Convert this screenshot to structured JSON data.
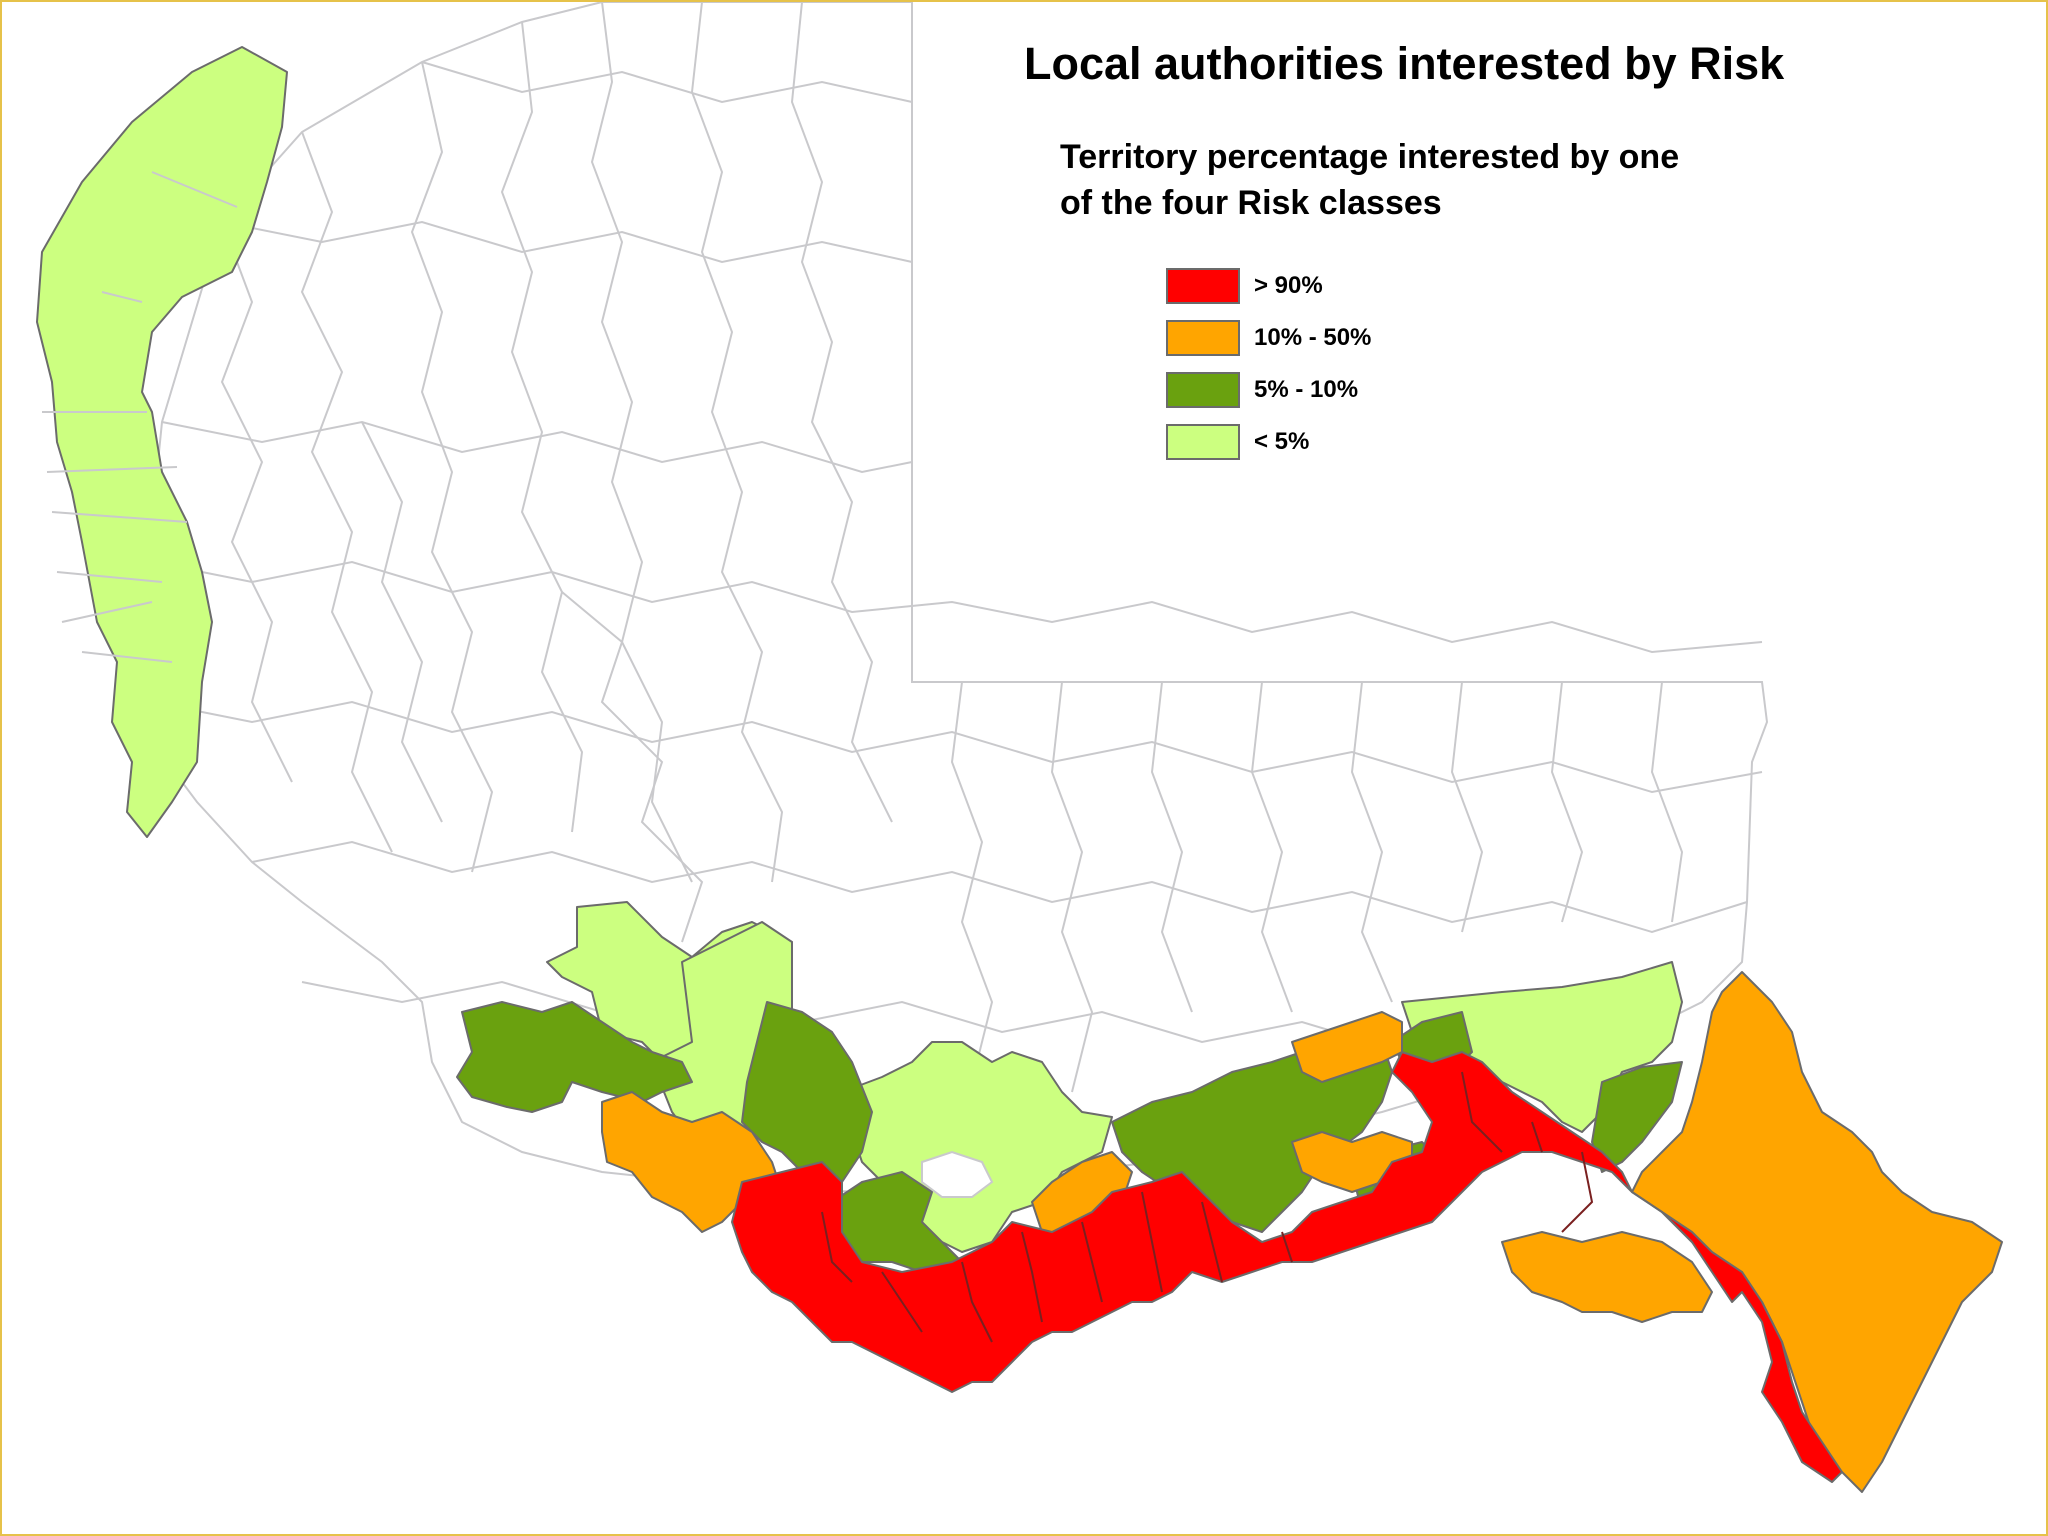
{
  "map": {
    "title": "Local authorities interested by Risk",
    "legend": {
      "title_line1": "Territory percentage interested by one",
      "title_line2": "of the four Risk classes",
      "items": [
        {
          "label": "> 90%",
          "color": "#ff0000"
        },
        {
          "label": "10% - 50%",
          "color": "#ffa500"
        },
        {
          "label": "5% - 10%",
          "color": "#6aa10f"
        },
        {
          "label": "< 5%",
          "color": "#ccff80"
        }
      ]
    },
    "colors": {
      "boundary": "#c9c9cc",
      "frame": "#e6c24a",
      "outline": "#6b6b6b"
    }
  }
}
